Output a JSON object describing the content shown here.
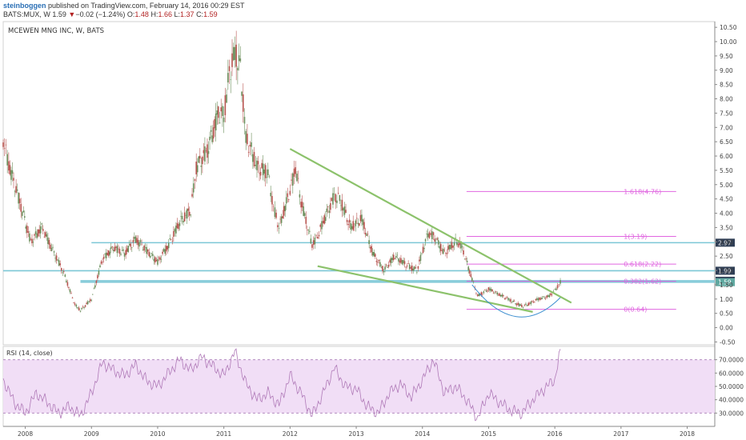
{
  "header": {
    "author": "steinboggen",
    "published_text": "published on TradingView.com, February 14, 2016 00:29 EST",
    "symbol": "BATS:MUX, W",
    "last": "1.59",
    "change_arrow": "▼",
    "change": "−0.02 (−1.24%)",
    "o_label": "O:",
    "o_value": "1.48",
    "h_label": "H:",
    "h_value": "1.66",
    "l_label": "L:",
    "l_value": "1.37",
    "c_label": "C:",
    "c_value": "1.59"
  },
  "colors": {
    "trendline": "#8cc26b",
    "horizontal_level": "#7cc7d6",
    "fib": "#e066e0",
    "rsi_line": "#b07ab8",
    "rsi_band": "#f1def6",
    "up_candle": "#6c8f5c",
    "down_candle": "#b85450"
  },
  "chart_data": [
    {
      "type": "candlestick",
      "title": "MCEWEN MNG INC, W, BATS",
      "interval": "weekly",
      "x_range": [
        "2007-09",
        "2018-06"
      ],
      "x_ticks": [
        "2008",
        "2009",
        "2010",
        "2011",
        "2012",
        "2013",
        "2014",
        "2015",
        "2016",
        "2017",
        "2018"
      ],
      "ylim": [
        -0.6,
        10.7
      ],
      "y_ticks": [
        "10.50",
        "10.00",
        "9.50",
        "9.00",
        "8.50",
        "8.00",
        "7.50",
        "7.00",
        "6.50",
        "6.00",
        "5.50",
        "5.00",
        "4.50",
        "4.00",
        "3.50",
        "3.00",
        "2.50",
        "2.00",
        "1.50",
        "1.00",
        "0.50",
        "0.00",
        "-0.50"
      ],
      "price_path": [
        [
          "2007-09",
          6.6
        ],
        [
          "2007-10",
          5.7
        ],
        [
          "2007-12",
          4.4
        ],
        [
          "2008-02",
          3.0
        ],
        [
          "2008-04",
          3.5
        ],
        [
          "2008-06",
          2.7
        ],
        [
          "2008-08",
          1.9
        ],
        [
          "2008-10",
          0.8
        ],
        [
          "2008-11",
          0.6
        ],
        [
          "2009-01",
          1.0
        ],
        [
          "2009-03",
          2.4
        ],
        [
          "2009-05",
          2.8
        ],
        [
          "2009-07",
          2.6
        ],
        [
          "2009-09",
          3.1
        ],
        [
          "2009-11",
          2.7
        ],
        [
          "2010-01",
          2.3
        ],
        [
          "2010-03",
          2.9
        ],
        [
          "2010-05",
          3.7
        ],
        [
          "2010-07",
          4.1
        ],
        [
          "2010-08",
          5.6
        ],
        [
          "2010-10",
          6.2
        ],
        [
          "2010-12",
          7.5
        ],
        [
          "2011-01",
          7.4
        ],
        [
          "2011-02",
          8.9
        ],
        [
          "2011-03",
          9.6
        ],
        [
          "2011-04",
          9.1
        ],
        [
          "2011-05",
          6.6
        ],
        [
          "2011-06",
          6.2
        ],
        [
          "2011-07",
          5.6
        ],
        [
          "2011-09",
          5.4
        ],
        [
          "2011-10",
          4.2
        ],
        [
          "2011-11",
          3.5
        ],
        [
          "2012-01",
          4.8
        ],
        [
          "2012-02",
          5.6
        ],
        [
          "2012-03",
          4.4
        ],
        [
          "2012-05",
          2.9
        ],
        [
          "2012-06",
          3.2
        ],
        [
          "2012-07",
          3.7
        ],
        [
          "2012-09",
          4.6
        ],
        [
          "2012-10",
          4.5
        ],
        [
          "2012-12",
          3.5
        ],
        [
          "2013-02",
          3.8
        ],
        [
          "2013-04",
          2.6
        ],
        [
          "2013-06",
          2.0
        ],
        [
          "2013-08",
          2.5
        ],
        [
          "2013-10",
          2.2
        ],
        [
          "2013-12",
          2.0
        ],
        [
          "2014-02",
          3.3
        ],
        [
          "2014-03",
          3.2
        ],
        [
          "2014-05",
          2.6
        ],
        [
          "2014-07",
          3.0
        ],
        [
          "2014-08",
          2.9
        ],
        [
          "2014-10",
          1.7
        ],
        [
          "2014-11",
          1.1
        ],
        [
          "2015-01",
          1.35
        ],
        [
          "2015-03",
          1.15
        ],
        [
          "2015-05",
          0.95
        ],
        [
          "2015-07",
          0.75
        ],
        [
          "2015-08",
          0.8
        ],
        [
          "2015-10",
          1.0
        ],
        [
          "2015-12",
          1.1
        ],
        [
          "2016-01",
          1.3
        ],
        [
          "2016-02",
          1.59
        ]
      ],
      "horizontal_levels": [
        2.97,
        1.99,
        1.64,
        1.59
      ],
      "price_badges": [
        "2.97",
        "1.99",
        "1.64",
        "1.59"
      ],
      "fib_levels": [
        {
          "label": "1.618(4.76)",
          "value": 4.76
        },
        {
          "label": "1(3.19)",
          "value": 3.19
        },
        {
          "label": "0.618(2.22)",
          "value": 2.22
        },
        {
          "label": "0.382(1.62)",
          "value": 1.62
        },
        {
          "label": "0(0.64)",
          "value": 0.64
        }
      ],
      "trendlines": [
        {
          "from": [
            "2012-01",
            6.25
          ],
          "to": [
            "2016-04",
            0.87
          ]
        },
        {
          "from": [
            "2012-06",
            2.15
          ],
          "to": [
            "2015-09",
            0.55
          ]
        }
      ]
    },
    {
      "type": "line",
      "title": "RSI (14, close)",
      "ylim": [
        20,
        80
      ],
      "y_ticks": [
        "70.0000",
        "60.0000",
        "50.0000",
        "40.0000",
        "30.0000"
      ],
      "band": [
        30,
        70
      ],
      "series": [
        {
          "values": [
            [
              "2007-09",
              55
            ],
            [
              "2007-11",
              38
            ],
            [
              "2008-01",
              30
            ],
            [
              "2008-03",
              45
            ],
            [
              "2008-05",
              38
            ],
            [
              "2008-07",
              30
            ],
            [
              "2008-09",
              35
            ],
            [
              "2008-11",
              28
            ],
            [
              "2009-01",
              45
            ],
            [
              "2009-03",
              68
            ],
            [
              "2009-05",
              62
            ],
            [
              "2009-07",
              58
            ],
            [
              "2009-09",
              66
            ],
            [
              "2009-11",
              54
            ],
            [
              "2010-01",
              50
            ],
            [
              "2010-03",
              60
            ],
            [
              "2010-05",
              70
            ],
            [
              "2010-07",
              62
            ],
            [
              "2010-09",
              72
            ],
            [
              "2010-11",
              65
            ],
            [
              "2011-01",
              58
            ],
            [
              "2011-03",
              76
            ],
            [
              "2011-05",
              52
            ],
            [
              "2011-07",
              40
            ],
            [
              "2011-09",
              45
            ],
            [
              "2011-11",
              36
            ],
            [
              "2012-01",
              58
            ],
            [
              "2012-03",
              45
            ],
            [
              "2012-05",
              28
            ],
            [
              "2012-07",
              45
            ],
            [
              "2012-09",
              64
            ],
            [
              "2012-11",
              50
            ],
            [
              "2013-01",
              48
            ],
            [
              "2013-03",
              35
            ],
            [
              "2013-05",
              30
            ],
            [
              "2013-07",
              45
            ],
            [
              "2013-09",
              52
            ],
            [
              "2013-11",
              42
            ],
            [
              "2014-01",
              55
            ],
            [
              "2014-03",
              70
            ],
            [
              "2014-05",
              45
            ],
            [
              "2014-07",
              50
            ],
            [
              "2014-09",
              40
            ],
            [
              "2014-11",
              26
            ],
            [
              "2015-01",
              45
            ],
            [
              "2015-03",
              38
            ],
            [
              "2015-05",
              32
            ],
            [
              "2015-07",
              30
            ],
            [
              "2015-09",
              40
            ],
            [
              "2015-11",
              48
            ],
            [
              "2016-01",
              55
            ],
            [
              "2016-02",
              78
            ]
          ]
        }
      ]
    }
  ]
}
